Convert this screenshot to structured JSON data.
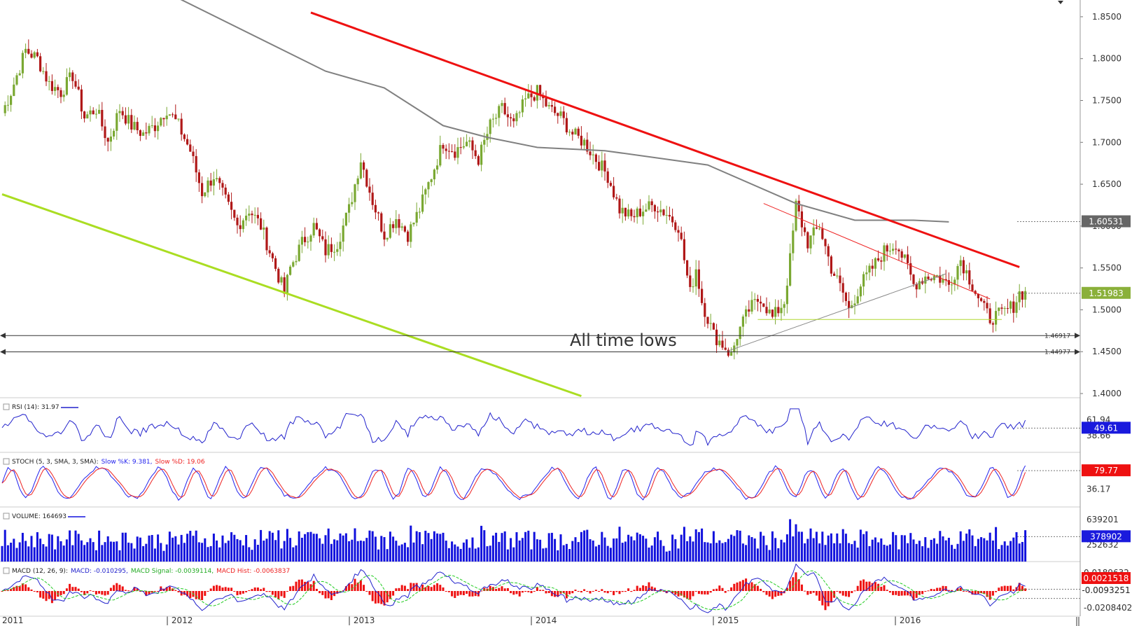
{
  "chart_data": {
    "type": "candlestick",
    "timeframe": "weekly",
    "x_labels": [
      "2011",
      "| 2012",
      "| 2013",
      "| 2014",
      "| 2015",
      "| 2016"
    ],
    "price_ticks": [
      "1.8500",
      "1.8000",
      "1.7500",
      "1.7000",
      "1.6500",
      "1.6000",
      "1.5500",
      "1.5000",
      "1.4500",
      "1.4000"
    ],
    "price_range": [
      1.395,
      1.87
    ],
    "current_price": "1.51983",
    "ma_value": "1.60531",
    "price_anchors": [
      [
        0,
        1.735
      ],
      [
        3,
        1.76
      ],
      [
        8,
        1.81
      ],
      [
        12,
        1.8
      ],
      [
        16,
        1.77
      ],
      [
        20,
        1.76
      ],
      [
        24,
        1.78
      ],
      [
        28,
        1.73
      ],
      [
        32,
        1.74
      ],
      [
        36,
        1.7
      ],
      [
        40,
        1.74
      ],
      [
        44,
        1.72
      ],
      [
        48,
        1.71
      ],
      [
        52,
        1.72
      ],
      [
        56,
        1.74
      ],
      [
        60,
        1.72
      ],
      [
        64,
        1.69
      ],
      [
        68,
        1.64
      ],
      [
        72,
        1.66
      ],
      [
        76,
        1.63
      ],
      [
        80,
        1.6
      ],
      [
        84,
        1.62
      ],
      [
        88,
        1.6
      ],
      [
        92,
        1.56
      ],
      [
        96,
        1.52
      ],
      [
        98,
        1.55
      ],
      [
        102,
        1.58
      ],
      [
        106,
        1.6
      ],
      [
        110,
        1.57
      ],
      [
        114,
        1.58
      ],
      [
        118,
        1.62
      ],
      [
        122,
        1.68
      ],
      [
        126,
        1.63
      ],
      [
        130,
        1.59
      ],
      [
        134,
        1.61
      ],
      [
        138,
        1.59
      ],
      [
        142,
        1.62
      ],
      [
        146,
        1.66
      ],
      [
        150,
        1.7
      ],
      [
        154,
        1.69
      ],
      [
        158,
        1.7
      ],
      [
        162,
        1.68
      ],
      [
        166,
        1.72
      ],
      [
        170,
        1.74
      ],
      [
        174,
        1.72
      ],
      [
        178,
        1.75
      ],
      [
        182,
        1.76
      ],
      [
        186,
        1.74
      ],
      [
        190,
        1.73
      ],
      [
        194,
        1.71
      ],
      [
        198,
        1.7
      ],
      [
        202,
        1.68
      ],
      [
        206,
        1.66
      ],
      [
        210,
        1.62
      ],
      [
        214,
        1.61
      ],
      [
        218,
        1.62
      ],
      [
        222,
        1.625
      ],
      [
        226,
        1.615
      ],
      [
        230,
        1.6
      ],
      [
        232,
        1.56
      ],
      [
        234,
        1.52
      ],
      [
        236,
        1.55
      ],
      [
        238,
        1.51
      ],
      [
        242,
        1.47
      ],
      [
        246,
        1.455
      ],
      [
        248,
        1.445
      ],
      [
        250,
        1.47
      ],
      [
        254,
        1.5
      ],
      [
        258,
        1.515
      ],
      [
        262,
        1.49
      ],
      [
        266,
        1.51
      ],
      [
        268,
        1.56
      ],
      [
        270,
        1.625
      ],
      [
        274,
        1.58
      ],
      [
        278,
        1.6
      ],
      [
        282,
        1.55
      ],
      [
        286,
        1.52
      ],
      [
        288,
        1.5
      ],
      [
        292,
        1.53
      ],
      [
        296,
        1.55
      ],
      [
        300,
        1.57
      ],
      [
        304,
        1.58
      ],
      [
        308,
        1.55
      ],
      [
        310,
        1.53
      ],
      [
        314,
        1.54
      ],
      [
        318,
        1.54
      ],
      [
        322,
        1.53
      ],
      [
        326,
        1.56
      ],
      [
        330,
        1.53
      ],
      [
        334,
        1.5
      ],
      [
        336,
        1.49
      ],
      [
        340,
        1.495
      ],
      [
        344,
        1.505
      ],
      [
        346,
        1.52
      ],
      [
        348,
        1.52
      ]
    ],
    "ma_anchors": [
      [
        0,
        1.96
      ],
      [
        60,
        1.872
      ],
      [
        110,
        1.785
      ],
      [
        130,
        1.765
      ],
      [
        150,
        1.72
      ],
      [
        165,
        1.706
      ],
      [
        182,
        1.694
      ],
      [
        205,
        1.69
      ],
      [
        240,
        1.673
      ],
      [
        270,
        1.627
      ],
      [
        290,
        1.607
      ],
      [
        310,
        1.607
      ],
      [
        322,
        1.605
      ]
    ],
    "trendlines": [
      {
        "name": "major-resistance",
        "color": "#ee1111",
        "from": [
          105,
          1.855
        ],
        "to": [
          346,
          1.551
        ]
      },
      {
        "name": "channel-support",
        "color": "#aadd22",
        "from": [
          0,
          1.638
        ],
        "to": [
          197,
          1.397
        ]
      },
      {
        "name": "triangle-resistance",
        "color": "#ee2222",
        "from": [
          259,
          1.627
        ],
        "to": [
          336,
          1.513
        ]
      },
      {
        "name": "rising-support",
        "color": "#888888",
        "from": [
          247,
          1.451
        ],
        "to": [
          321,
          1.543
        ]
      },
      {
        "name": "base-support",
        "color": "#b0d830",
        "from": [
          257,
          1.4885
        ],
        "to": [
          340,
          1.4885
        ]
      }
    ],
    "levels": [
      {
        "label": "1.46917",
        "value": 1.46917
      },
      {
        "label": "1.44977",
        "value": 1.44977
      }
    ],
    "annotation": "All time lows",
    "indicators": {
      "rsi": {
        "label": "RSI (14): 31.97",
        "current": "49.61",
        "ticks": [
          "61.94",
          "38.66"
        ],
        "range": [
          20,
          82
        ],
        "color": "#2222cc"
      },
      "stoch": {
        "label": "STOCH (5, 3, SMA, 3, SMA):",
        "k_label": "Slow %K: 9.381,",
        "d_label": "Slow %D: 19.06",
        "current": "79.77",
        "tick": "36.17",
        "k_color": "#2222ee",
        "d_color": "#ee2222"
      },
      "volume": {
        "label": "VOLUME: 164693",
        "current": "378902",
        "ticks": [
          "639201",
          "252632"
        ],
        "range": [
          0,
          680000
        ],
        "color": "#1111dd"
      },
      "macd": {
        "label": "MACD (12, 26, 9):",
        "macd_label": "MACD: -0.010295,",
        "signal_label": "MACD Signal: -0.0039114,",
        "hist_label": "MACD Hist: -0.0063837",
        "current_hist": "0.0021518",
        "current_macd": "-0.0093251",
        "ticks": [
          "0.0189632",
          "-0.0208402"
        ],
        "macd_color": "#2222cc",
        "signal_color": "#22cc22",
        "hist_color": "#ee1111"
      }
    },
    "colors": {
      "up_candle": "#7aa832",
      "down_candle": "#b01818",
      "ma": "#808080",
      "grid_line": "#333333"
    }
  }
}
